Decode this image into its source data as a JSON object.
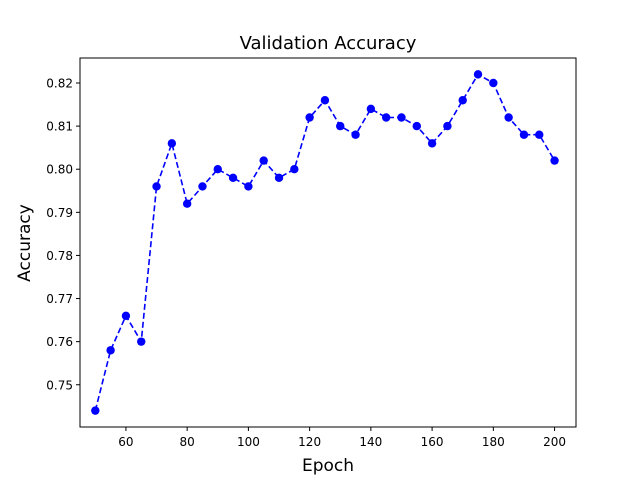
{
  "chart_data": {
    "type": "line",
    "title": "Validation Accuracy",
    "xlabel": "Epoch",
    "ylabel": "Accuracy",
    "xlim": [
      45,
      207
    ],
    "ylim": [
      0.7402,
      0.8258
    ],
    "xticks": [
      60,
      80,
      100,
      120,
      140,
      160,
      180,
      200
    ],
    "yticks": [
      0.75,
      0.76,
      0.77,
      0.78,
      0.79,
      0.8,
      0.81,
      0.82
    ],
    "ytick_format": "3dp",
    "grid": false,
    "series": [
      {
        "color": "#0000ff",
        "line_style": "dashed",
        "marker": "circle",
        "x": [
          50,
          55,
          60,
          65,
          70,
          75,
          80,
          85,
          90,
          95,
          100,
          105,
          110,
          115,
          120,
          125,
          130,
          135,
          140,
          145,
          150,
          155,
          160,
          165,
          170,
          175,
          180,
          185,
          190,
          195,
          200
        ],
        "y": [
          0.744,
          0.758,
          0.766,
          0.76,
          0.796,
          0.806,
          0.792,
          0.796,
          0.8,
          0.798,
          0.796,
          0.802,
          0.798,
          0.8,
          0.812,
          0.816,
          0.81,
          0.808,
          0.814,
          0.812,
          0.812,
          0.81,
          0.806,
          0.81,
          0.816,
          0.822,
          0.82,
          0.812,
          0.808,
          0.808,
          0.802
        ]
      }
    ]
  }
}
